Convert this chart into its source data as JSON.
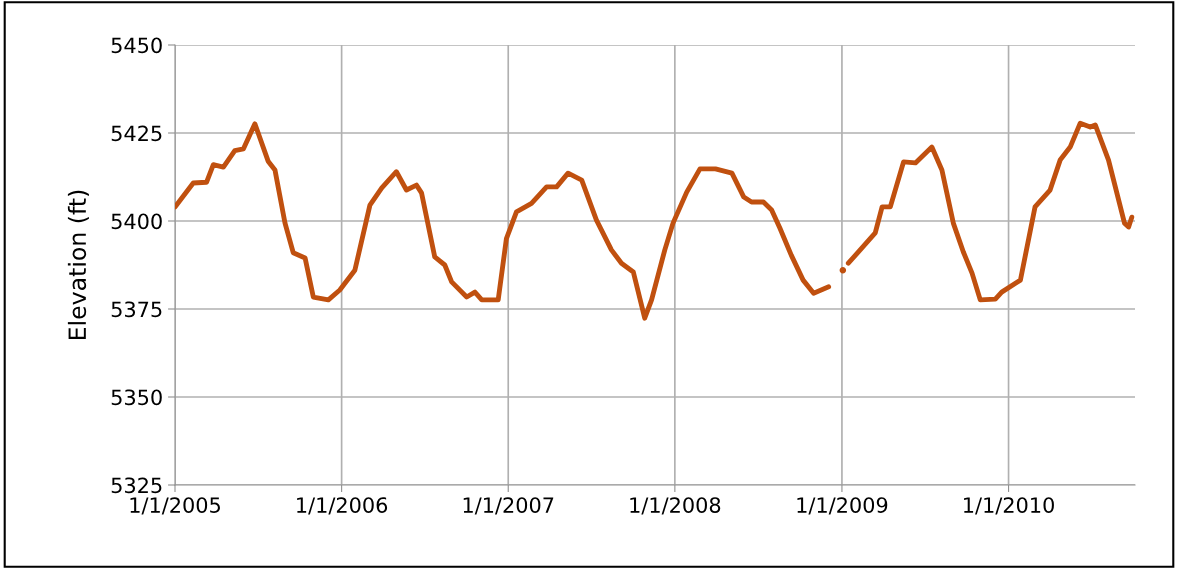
{
  "chart_data": {
    "type": "line",
    "ylabel": "Elevation (ft)",
    "xlim": [
      "2005-01-01",
      "2010-10-05"
    ],
    "ylim": [
      5325,
      5450
    ],
    "xticks": [
      {
        "value": "2005-01-01",
        "label": "1/1/2005"
      },
      {
        "value": "2006-01-01",
        "label": "1/1/2006"
      },
      {
        "value": "2007-01-01",
        "label": "1/1/2007"
      },
      {
        "value": "2008-01-01",
        "label": "1/1/2008"
      },
      {
        "value": "2009-01-01",
        "label": "1/1/2009"
      },
      {
        "value": "2010-01-01",
        "label": "1/1/2010"
      }
    ],
    "yticks": [
      5325,
      5350,
      5375,
      5400,
      5425,
      5450
    ],
    "grid": true,
    "marker": "none",
    "line_style": "solid",
    "series": [
      {
        "color": "#c0500f",
        "x": [
          "2005-01-01",
          "2005-02-10",
          "2005-03-11",
          "2005-03-26",
          "2005-04-17",
          "2005-05-12",
          "2005-05-31",
          "2005-06-25",
          "2005-07-24",
          "2005-08-08",
          "2005-08-30",
          "2005-09-17",
          "2005-10-13",
          "2005-10-31",
          "2005-12-03",
          "2005-12-28",
          "2006-01-30",
          "2006-03-04",
          "2006-03-30",
          "2006-05-01",
          "2006-05-23",
          "2006-06-14",
          "2006-06-25",
          "2006-07-24",
          "2006-08-15",
          "2006-08-30",
          "2006-10-02",
          "2006-10-20",
          "2006-11-04",
          "2006-12-10",
          "2006-12-28",
          "2007-01-19",
          "2007-02-21",
          "2007-03-26",
          "2007-04-17",
          "2007-05-12",
          "2007-06-11",
          "2007-07-13",
          "2007-08-15",
          "2007-09-06",
          "2007-10-02",
          "2007-10-27",
          "2007-11-11",
          "2007-12-10",
          "2007-12-28",
          "2008-01-27",
          "2008-02-25",
          "2008-03-30",
          "2008-05-05",
          "2008-05-31",
          "2008-06-17",
          "2008-07-13",
          "2008-07-31",
          "2008-08-18",
          "2008-09-12",
          "2008-10-08",
          "2008-10-31",
          "2008-12-03",
          "2008-12-17",
          "2009-01-03",
          "2009-01-10",
          "2009-01-15",
          "2009-03-15",
          "2009-03-30",
          "2009-04-17",
          "2009-05-16",
          "2009-06-11",
          "2009-07-17",
          "2009-08-08",
          "2009-09-02",
          "2009-09-24",
          "2009-10-13",
          "2009-10-31",
          "2009-12-03",
          "2009-12-17",
          "2010-01-27",
          "2010-02-28",
          "2010-04-02",
          "2010-04-24",
          "2010-05-16",
          "2010-06-07",
          "2010-06-29",
          "2010-07-10",
          "2010-08-08",
          "2010-09-12",
          "2010-09-21",
          "2010-09-28"
        ],
        "values": [
          5404,
          5410.8,
          5411,
          5416,
          5415.3,
          5420,
          5420.5,
          5427.6,
          5417,
          5414.5,
          5399.4,
          5391,
          5389.5,
          5378.4,
          5377.6,
          5380.4,
          5386,
          5404.5,
          5409.4,
          5414,
          5408.8,
          5410.2,
          5408,
          5389.8,
          5387.5,
          5382.7,
          5378.4,
          5379.8,
          5377.6,
          5377.6,
          5395,
          5402.6,
          5405,
          5409.7,
          5409.7,
          5413.6,
          5411.6,
          5400.3,
          5391.8,
          5388,
          5385.5,
          5372.4,
          5377.6,
          5391.8,
          5399.4,
          5408.2,
          5414.8,
          5414.8,
          5413.6,
          5406.8,
          5405.4,
          5405.4,
          5403.1,
          5398,
          5390.3,
          5383.2,
          5379.5,
          5381.3,
          null,
          5386,
          null,
          5388,
          5396.6,
          5404,
          5404,
          5416.8,
          5416.5,
          5421,
          5414.5,
          5399.4,
          5391.2,
          5385.2,
          5377.6,
          5377.8,
          5379.8,
          5383.2,
          5404,
          5408.8,
          5417.3,
          5421,
          5427.8,
          5426.7,
          5427.3,
          5417.3,
          5399.4,
          5398.3,
          5401.1
        ]
      }
    ]
  }
}
